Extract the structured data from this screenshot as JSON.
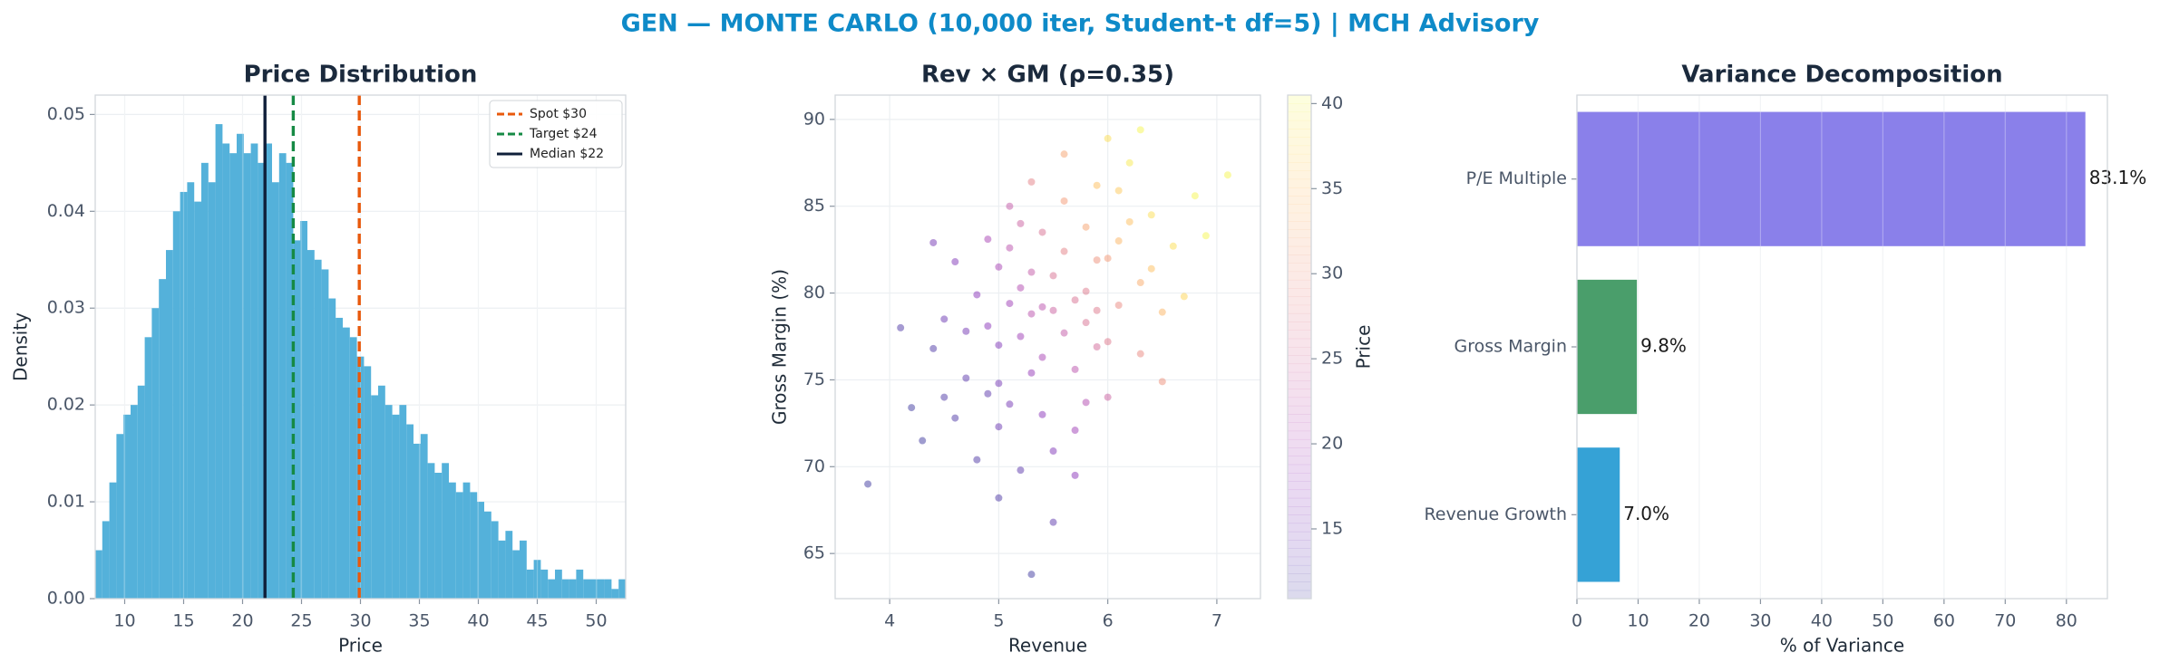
{
  "title": "GEN — MONTE CARLO (10,000 iter, Student-t df=5) | MCH Advisory",
  "chart_data": [
    {
      "type": "histogram",
      "title": "Price Distribution",
      "xlabel": "Price",
      "ylabel": "Density",
      "bins": [
        7.5,
        8.1,
        8.7,
        9.3,
        9.9,
        10.5,
        11.1,
        11.7,
        12.3,
        12.9,
        13.5,
        14.1,
        14.7,
        15.3,
        15.9,
        16.5,
        17.1,
        17.7,
        18.3,
        18.9,
        19.5,
        20.1,
        20.7,
        21.3,
        21.9,
        22.5,
        23.1,
        23.7,
        24.3,
        24.9,
        25.5,
        26.1,
        26.7,
        27.3,
        27.9,
        28.5,
        29.1,
        29.7,
        30.3,
        30.9,
        31.5,
        32.1,
        32.7,
        33.3,
        33.9,
        34.5,
        35.1,
        35.7,
        36.3,
        36.9,
        37.5,
        38.1,
        38.7,
        39.3,
        39.9,
        40.5,
        41.1,
        41.7,
        42.3,
        42.9,
        43.5,
        44.1,
        44.7,
        45.3,
        45.9,
        46.5,
        47.1,
        47.7,
        48.3,
        48.9,
        49.5,
        50.1,
        50.7,
        51.3,
        51.9,
        52.5
      ],
      "values": [
        0.005,
        0.008,
        0.012,
        0.017,
        0.019,
        0.02,
        0.022,
        0.027,
        0.03,
        0.033,
        0.036,
        0.04,
        0.042,
        0.043,
        0.041,
        0.045,
        0.043,
        0.049,
        0.047,
        0.046,
        0.048,
        0.046,
        0.047,
        0.045,
        0.047,
        0.043,
        0.046,
        0.045,
        0.037,
        0.039,
        0.036,
        0.035,
        0.034,
        0.031,
        0.029,
        0.028,
        0.027,
        0.025,
        0.024,
        0.021,
        0.022,
        0.02,
        0.019,
        0.02,
        0.018,
        0.016,
        0.017,
        0.014,
        0.013,
        0.014,
        0.012,
        0.011,
        0.012,
        0.011,
        0.01,
        0.009,
        0.008,
        0.006,
        0.007,
        0.005,
        0.006,
        0.003,
        0.004,
        0.003,
        0.002,
        0.003,
        0.002,
        0.002,
        0.003,
        0.002,
        0.002,
        0.002,
        0.002,
        0.001,
        0.002
      ],
      "color": "#4badd8",
      "xlim": [
        7.5,
        52.5
      ],
      "ylim": [
        0,
        0.052
      ],
      "xticks": [
        10,
        15,
        20,
        25,
        30,
        35,
        40,
        45,
        50
      ],
      "yticks": [
        {
          "value": 0,
          "label": "0.00"
        },
        {
          "value": 0.01,
          "label": "0.01"
        },
        {
          "value": 0.02,
          "label": "0.02"
        },
        {
          "value": 0.03,
          "label": "0.03"
        },
        {
          "value": 0.04,
          "label": "0.04"
        },
        {
          "value": 0.05,
          "label": "0.05"
        }
      ],
      "grid": true,
      "legend": "upper right",
      "vlines": [
        {
          "name": "Spot $30",
          "value": 29.9,
          "color": "#e8590c",
          "style": "dashed"
        },
        {
          "name": "Target $24",
          "value": 24.3,
          "color": "#168a45",
          "style": "dashed"
        },
        {
          "name": "Median $22",
          "value": 21.9,
          "color": "#0f1f3a",
          "style": "solid"
        }
      ]
    },
    {
      "type": "scatter",
      "title": "Rev × GM (ρ=0.35)",
      "xlabel": "Revenue",
      "ylabel": "Gross Margin (%)",
      "x": [
        5.2,
        5.8,
        4.9,
        6.1,
        5.5,
        4.6,
        6.4,
        5.0,
        5.7,
        5.3,
        6.0,
        4.8,
        5.6,
        5.1,
        6.3,
        5.4,
        4.4,
        5.9,
        5.2,
        6.6,
        5.5,
        4.7,
        5.8,
        5.0,
        6.2,
        5.3,
        4.3,
        5.7,
        6.0,
        5.1,
        5.6,
        4.9,
        6.5,
        5.4,
        5.9,
        4.5,
        5.2,
        6.8,
        5.6,
        5.0,
        6.1,
        5.3,
        4.2,
        5.8,
        5.5,
        4.8,
        6.3,
        5.1,
        5.7,
        6.0,
        4.6,
        5.4,
        6.2,
        5.0,
        5.9,
        3.8,
        6.9,
        5.3,
        5.6,
        4.7,
        6.4,
        5.2,
        5.8,
        4.4,
        6.1,
        5.5,
        4.9,
        6.7,
        5.4,
        5.0,
        6.0,
        5.7,
        4.5,
        6.3,
        5.1,
        5.9,
        4.1,
        7.1,
        5.3,
        6.5
      ],
      "y": [
        77.5,
        80.1,
        74.2,
        83.0,
        79.0,
        72.8,
        84.5,
        81.5,
        75.6,
        78.8,
        77.2,
        79.9,
        82.4,
        73.6,
        80.6,
        76.3,
        76.8,
        86.2,
        84.0,
        82.7,
        70.9,
        75.1,
        78.3,
        77.0,
        87.5,
        81.2,
        71.5,
        79.6,
        74.0,
        79.4,
        85.3,
        83.1,
        78.9,
        73.0,
        81.9,
        78.5,
        69.8,
        85.6,
        77.7,
        74.8,
        79.3,
        86.4,
        73.4,
        83.8,
        81.0,
        70.4,
        76.5,
        82.6,
        72.1,
        88.9,
        81.8,
        79.2,
        84.1,
        72.3,
        76.9,
        69.0,
        83.3,
        75.4,
        88.0,
        77.8,
        81.4,
        80.3,
        73.7,
        82.9,
        85.9,
        66.8,
        78.1,
        79.8,
        83.5,
        68.2,
        82.0,
        69.5,
        74.0,
        89.4,
        85.0,
        79.0,
        78.0,
        86.8,
        63.8,
        74.9
      ],
      "c": [
        19,
        27,
        13,
        34,
        24,
        12,
        38,
        20,
        22,
        22,
        27,
        17,
        28,
        15,
        33,
        20,
        12,
        35,
        24,
        38,
        16,
        13,
        26,
        16,
        39,
        23,
        11,
        26,
        24,
        19,
        31,
        20,
        34,
        17,
        30,
        14,
        13,
        40,
        23,
        15,
        29,
        28,
        11,
        32,
        26,
        12,
        29,
        22,
        19,
        38,
        16,
        22,
        35,
        14,
        25,
        11,
        40,
        18,
        32,
        15,
        35,
        21,
        21,
        15,
        36,
        13,
        17,
        37,
        26,
        12,
        31,
        17,
        12,
        40,
        23,
        27,
        12,
        40,
        11,
        30
      ],
      "cmap": "plasma",
      "colorbar": {
        "label": "Price",
        "lim": [
          10.9,
          40.5
        ],
        "ticks": [
          15,
          20,
          25,
          30,
          35,
          40
        ]
      },
      "xlim": [
        3.5,
        7.4
      ],
      "ylim": [
        62.4,
        91.4
      ],
      "xticks": [
        4,
        5,
        6,
        7
      ],
      "yticks": [
        65,
        70,
        75,
        80,
        85,
        90
      ],
      "grid": true
    },
    {
      "type": "barh",
      "title": "Variance Decomposition",
      "xlabel": "% of Variance",
      "categories": [
        "Revenue Growth",
        "Gross Margin",
        "P/E Multiple"
      ],
      "values": [
        7.0,
        9.8,
        83.1
      ],
      "value_labels": [
        "7.0%",
        "9.8%",
        "83.1%"
      ],
      "colors": [
        "#35a2d6",
        "#4a9e6b",
        "#8a80ea"
      ],
      "xlim": [
        0,
        86.7
      ],
      "xticks": [
        0,
        10,
        20,
        30,
        40,
        50,
        60,
        70,
        80
      ],
      "grid": true
    }
  ]
}
